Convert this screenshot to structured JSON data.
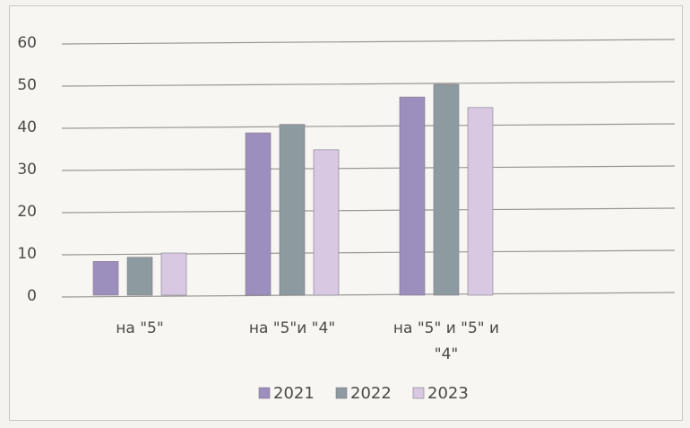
{
  "chart_data": {
    "type": "bar",
    "title": "",
    "xlabel": "",
    "ylabel": "",
    "categories": [
      [
        "на \"5\""
      ],
      [
        "на \"5\"и \"4\""
      ],
      [
        "на \"5\" и \"5\" и",
        "\"4\""
      ]
    ],
    "series": [
      {
        "name": "2021",
        "values": [
          8,
          38.5,
          47
        ],
        "color": "#9c8fbe"
      },
      {
        "name": "2022",
        "values": [
          9,
          40.5,
          50
        ],
        "color": "#8d9aa0"
      },
      {
        "name": "2023",
        "values": [
          10,
          34.5,
          44.5
        ],
        "color": "#d8c8e2"
      }
    ],
    "yticks": [
      0,
      10,
      20,
      30,
      40,
      50,
      60
    ],
    "ylim": [
      0,
      60
    ],
    "grid": true,
    "legend_position": "bottom"
  }
}
